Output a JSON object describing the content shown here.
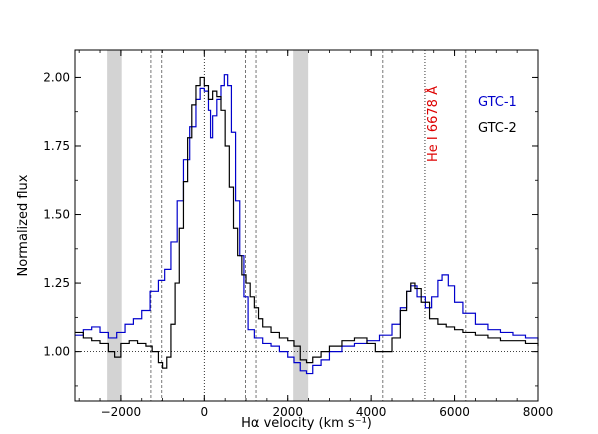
{
  "chart_data": {
    "type": "line",
    "xlabel": "Hα velocity (km s⁻¹)",
    "ylabel": "Normalized flux",
    "xlim": [
      -3100,
      8000
    ],
    "ylim": [
      0.82,
      2.1
    ],
    "x_ticks": [
      -2000,
      0,
      2000,
      4000,
      6000,
      8000
    ],
    "x_tick_labels": [
      "−2000",
      "0",
      "2000",
      "4000",
      "6000",
      "8000"
    ],
    "y_ticks": [
      1.0,
      1.25,
      1.5,
      1.75,
      2.0
    ],
    "y_tick_labels": [
      "1.00",
      "1.25",
      "1.50",
      "1.75",
      "2.00"
    ],
    "reference_level": 1.0,
    "shaded_bands": [
      [
        -2330,
        -1980
      ],
      [
        2130,
        2490
      ]
    ],
    "dashed_lines": [
      -1280,
      -1020,
      990,
      1240,
      4280,
      6270
    ],
    "dotted_lines": [
      0,
      5290
    ],
    "annotation": {
      "text": "He I 6678 Å",
      "x": 5290,
      "color": "#dd0000"
    },
    "legend": {
      "placement": "top-right"
    },
    "series": [
      {
        "name": "GTC-1",
        "color": "#0000cc",
        "points": [
          [
            -3100,
            1.06
          ],
          [
            -2900,
            1.08
          ],
          [
            -2700,
            1.09
          ],
          [
            -2500,
            1.07
          ],
          [
            -2300,
            1.05
          ],
          [
            -2100,
            1.07
          ],
          [
            -1900,
            1.1
          ],
          [
            -1700,
            1.12
          ],
          [
            -1500,
            1.15
          ],
          [
            -1300,
            1.22
          ],
          [
            -1100,
            1.26
          ],
          [
            -950,
            1.3
          ],
          [
            -800,
            1.4
          ],
          [
            -650,
            1.55
          ],
          [
            -500,
            1.7
          ],
          [
            -350,
            1.82
          ],
          [
            -200,
            1.92
          ],
          [
            -100,
            1.96
          ],
          [
            0,
            1.95
          ],
          [
            100,
            1.88
          ],
          [
            150,
            1.78
          ],
          [
            200,
            1.86
          ],
          [
            300,
            1.92
          ],
          [
            400,
            1.97
          ],
          [
            480,
            2.01
          ],
          [
            560,
            1.97
          ],
          [
            650,
            1.8
          ],
          [
            750,
            1.55
          ],
          [
            850,
            1.35
          ],
          [
            950,
            1.2
          ],
          [
            1050,
            1.08
          ],
          [
            1200,
            1.05
          ],
          [
            1400,
            1.03
          ],
          [
            1600,
            1.02
          ],
          [
            1800,
            1.0
          ],
          [
            2000,
            0.98
          ],
          [
            2150,
            0.96
          ],
          [
            2300,
            0.93
          ],
          [
            2450,
            0.92
          ],
          [
            2600,
            0.95
          ],
          [
            2800,
            0.97
          ],
          [
            3000,
            1.0
          ],
          [
            3300,
            1.02
          ],
          [
            3600,
            1.03
          ],
          [
            3900,
            1.04
          ],
          [
            4200,
            1.06
          ],
          [
            4500,
            1.1
          ],
          [
            4700,
            1.16
          ],
          [
            4850,
            1.22
          ],
          [
            4950,
            1.24
          ],
          [
            5100,
            1.2
          ],
          [
            5300,
            1.16
          ],
          [
            5450,
            1.2
          ],
          [
            5600,
            1.26
          ],
          [
            5700,
            1.28
          ],
          [
            5850,
            1.24
          ],
          [
            6000,
            1.18
          ],
          [
            6200,
            1.14
          ],
          [
            6500,
            1.1
          ],
          [
            6800,
            1.08
          ],
          [
            7100,
            1.07
          ],
          [
            7400,
            1.06
          ],
          [
            7700,
            1.05
          ],
          [
            8000,
            1.04
          ]
        ]
      },
      {
        "name": "GTC-2",
        "color": "#000000",
        "points": [
          [
            -3100,
            1.07
          ],
          [
            -2900,
            1.05
          ],
          [
            -2700,
            1.04
          ],
          [
            -2500,
            1.03
          ],
          [
            -2300,
            1.0
          ],
          [
            -2150,
            0.98
          ],
          [
            -2000,
            1.03
          ],
          [
            -1800,
            1.04
          ],
          [
            -1600,
            1.03
          ],
          [
            -1400,
            1.02
          ],
          [
            -1250,
            1.0
          ],
          [
            -1100,
            0.96
          ],
          [
            -1000,
            0.94
          ],
          [
            -900,
            0.98
          ],
          [
            -800,
            1.1
          ],
          [
            -700,
            1.25
          ],
          [
            -600,
            1.45
          ],
          [
            -500,
            1.62
          ],
          [
            -400,
            1.78
          ],
          [
            -300,
            1.9
          ],
          [
            -200,
            1.97
          ],
          [
            -100,
            2.0
          ],
          [
            0,
            1.97
          ],
          [
            100,
            1.92
          ],
          [
            200,
            1.95
          ],
          [
            300,
            1.93
          ],
          [
            400,
            1.88
          ],
          [
            500,
            1.75
          ],
          [
            600,
            1.6
          ],
          [
            700,
            1.45
          ],
          [
            800,
            1.35
          ],
          [
            900,
            1.28
          ],
          [
            1000,
            1.25
          ],
          [
            1100,
            1.2
          ],
          [
            1200,
            1.16
          ],
          [
            1300,
            1.12
          ],
          [
            1400,
            1.09
          ],
          [
            1600,
            1.07
          ],
          [
            1800,
            1.05
          ],
          [
            2000,
            1.04
          ],
          [
            2150,
            1.02
          ],
          [
            2300,
            0.97
          ],
          [
            2450,
            0.96
          ],
          [
            2600,
            0.98
          ],
          [
            2800,
            1.0
          ],
          [
            3000,
            1.02
          ],
          [
            3300,
            1.04
          ],
          [
            3600,
            1.05
          ],
          [
            3900,
            1.03
          ],
          [
            4100,
            1.0
          ],
          [
            4300,
            1.0
          ],
          [
            4500,
            1.05
          ],
          [
            4700,
            1.15
          ],
          [
            4850,
            1.22
          ],
          [
            4950,
            1.25
          ],
          [
            5050,
            1.23
          ],
          [
            5200,
            1.18
          ],
          [
            5400,
            1.12
          ],
          [
            5600,
            1.1
          ],
          [
            5800,
            1.09
          ],
          [
            6000,
            1.08
          ],
          [
            6200,
            1.07
          ],
          [
            6500,
            1.06
          ],
          [
            6800,
            1.05
          ],
          [
            7100,
            1.04
          ],
          [
            7400,
            1.04
          ],
          [
            7700,
            1.03
          ],
          [
            8000,
            1.02
          ]
        ]
      }
    ]
  }
}
